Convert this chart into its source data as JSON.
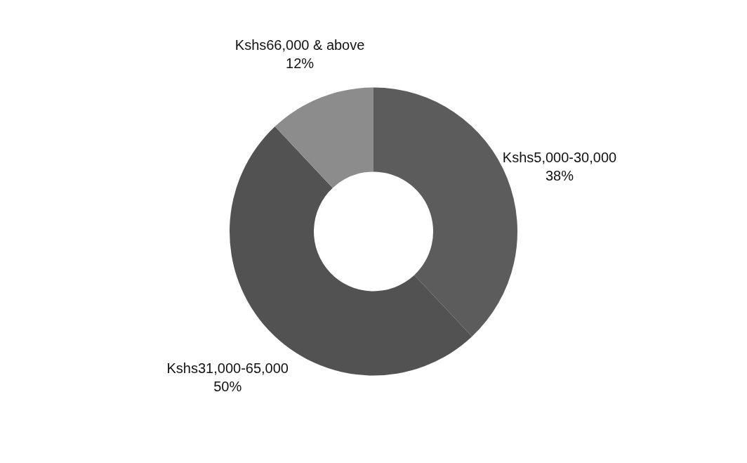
{
  "chart_data": {
    "type": "donut",
    "categories": [
      "Kshs5,000-30,000",
      "Kshs31,000-65,000",
      "Kshs66,000 & above"
    ],
    "values": [
      38,
      50,
      12
    ],
    "value_labels": [
      "38%",
      "50%",
      "12%"
    ],
    "colors": [
      "#5c5c5c",
      "#525252",
      "#8c8c8c"
    ]
  }
}
